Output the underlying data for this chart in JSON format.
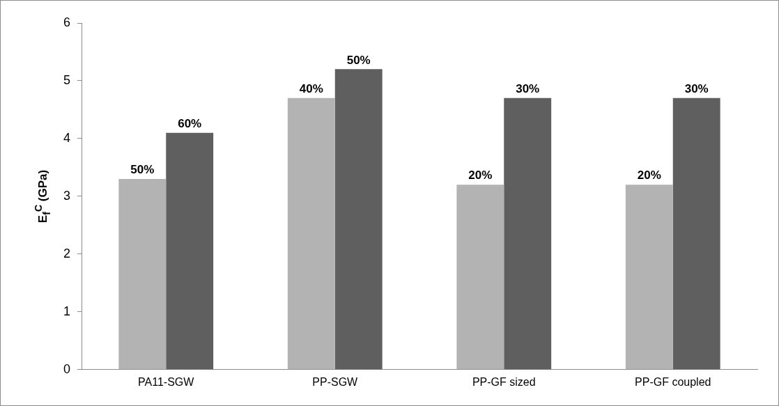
{
  "chart_data": {
    "type": "bar",
    "ylabel": "E$_{f}$$^{C}$ (GPa)",
    "categories": [
      "PA11-SGW",
      "PP-SGW",
      "PP-GF sized",
      "PP-GF coupled"
    ],
    "series": [
      {
        "color": "#b3b3b3",
        "values": [
          3.3,
          4.7,
          3.2,
          3.2
        ]
      },
      {
        "color": "#5f5f5f",
        "values": [
          4.1,
          5.2,
          4.7,
          4.7
        ]
      }
    ],
    "annotations": [
      {
        "text": "50%",
        "x": "PA11-SGW",
        "y": 3.3
      },
      {
        "text": "60%",
        "x": "PA11-SGW",
        "y": 4.1
      },
      {
        "text": "40%",
        "x": "PP-SGW",
        "y": 4.7
      },
      {
        "text": "50%",
        "x": "PP-SGW",
        "y": 5.2
      },
      {
        "text": "20%",
        "x": "PP-GF sized",
        "y": 3.2
      },
      {
        "text": "30%",
        "x": "PP-GF sized",
        "y": 4.7
      },
      {
        "text": "20%",
        "x": "PP-GF coupled",
        "y": 3.2
      },
      {
        "text": "30%",
        "x": "PP-GF coupled",
        "y": 4.7
      }
    ],
    "ylim": [
      0,
      6
    ],
    "yticks": [
      0,
      1,
      2,
      3,
      4,
      5,
      6
    ],
    "grid": false,
    "legend": false
  }
}
